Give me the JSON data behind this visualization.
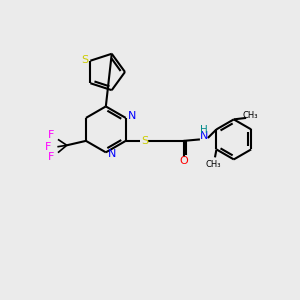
{
  "bg_color": "#ebebeb",
  "atom_colors": {
    "C": "#000000",
    "N": "#0000ff",
    "S": "#cccc00",
    "O": "#ff0000",
    "F": "#ff00ff",
    "H": "#008b8b"
  },
  "bond_color": "#000000",
  "figsize": [
    3.0,
    3.0
  ],
  "dpi": 100
}
